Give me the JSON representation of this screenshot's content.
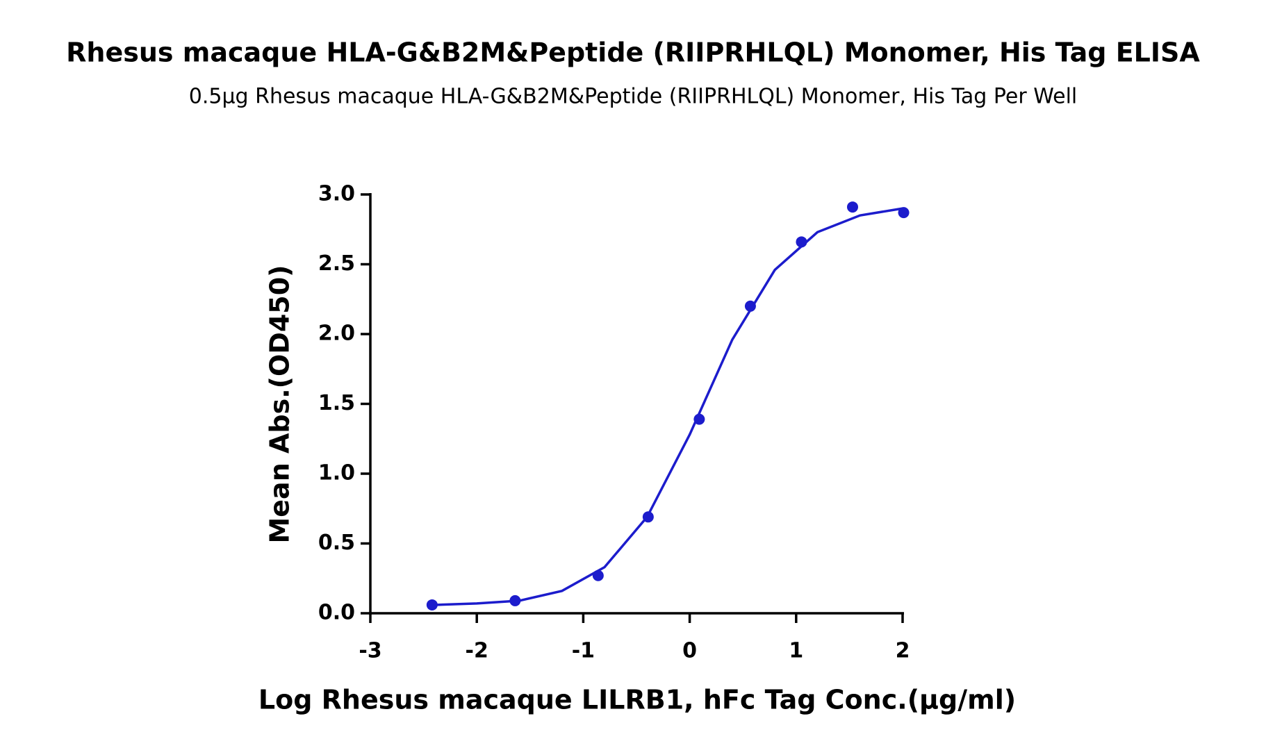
{
  "chart_data": {
    "type": "scatter",
    "title": "Rhesus macaque HLA-G&B2M&Peptide (RIIPRHLQL) Monomer, His Tag ELISA",
    "subtitle": "0.5μg Rhesus macaque HLA-G&B2M&Peptide (RIIPRHLQL) Monomer, His Tag Per Well",
    "x_label": "Log Rhesus macaque LILRB1, hFc Tag Conc.(μg/ml)",
    "y_label": "Mean Abs.(OD450)",
    "series": [
      {
        "mode": "points",
        "color": "#1c1ccc",
        "x": [
          -2.42,
          -1.64,
          -0.86,
          -0.39,
          0.09,
          0.57,
          1.05,
          1.53,
          2.01
        ],
        "values": [
          0.06,
          0.09,
          0.27,
          0.69,
          1.39,
          2.2,
          2.66,
          2.91,
          2.87
        ]
      },
      {
        "mode": "line",
        "color": "#1c1ccc",
        "x": [
          -2.4,
          -2.0,
          -1.6,
          -1.2,
          -0.8,
          -0.4,
          0,
          0.4,
          0.8,
          1.2,
          1.6,
          2.0
        ],
        "values": [
          0.06,
          0.07,
          0.09,
          0.16,
          0.33,
          0.69,
          1.28,
          1.96,
          2.46,
          2.73,
          2.85,
          2.9
        ]
      }
    ],
    "xlim": [
      -3,
      2
    ],
    "xticks": [
      -3,
      -2,
      -1,
      0,
      1,
      2
    ],
    "ylim": [
      0,
      3
    ],
    "yticks": [
      {
        "value": 0,
        "label": "0.0"
      },
      0.5,
      {
        "value": 1,
        "label": "1.0"
      },
      1.5,
      {
        "value": 2,
        "label": "2.0"
      },
      2.5,
      {
        "value": 3,
        "label": "3.0"
      }
    ],
    "grid": false
  }
}
